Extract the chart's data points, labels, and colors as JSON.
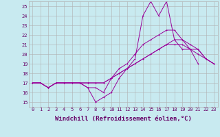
{
  "background_color": "#c8eaf0",
  "line_color": "#990099",
  "grid_color": "#b0b0b0",
  "xlabel": "Windchill (Refroidissement éolien,°C)",
  "ylabel_ticks": [
    15,
    16,
    17,
    18,
    19,
    20,
    21,
    22,
    23,
    24,
    25
  ],
  "xticks": [
    0,
    1,
    2,
    3,
    4,
    5,
    6,
    7,
    8,
    9,
    10,
    11,
    12,
    13,
    14,
    15,
    16,
    17,
    18,
    19,
    20,
    21,
    22,
    23
  ],
  "xlim": [
    -0.5,
    23.5
  ],
  "ylim": [
    14.5,
    25.5
  ],
  "series": [
    [
      17.0,
      17.0,
      16.5,
      17.0,
      17.0,
      17.0,
      17.0,
      16.5,
      15.0,
      15.5,
      16.0,
      17.5,
      18.5,
      19.5,
      24.0,
      25.5,
      24.0,
      25.5,
      21.5,
      20.5,
      20.5,
      19.0,
      null,
      null
    ],
    [
      17.0,
      17.0,
      16.5,
      17.0,
      17.0,
      17.0,
      17.0,
      16.5,
      16.5,
      16.0,
      17.5,
      18.5,
      19.0,
      20.0,
      21.0,
      21.5,
      22.0,
      22.5,
      22.5,
      21.5,
      20.5,
      20.0,
      19.5,
      19.0
    ],
    [
      17.0,
      17.0,
      16.5,
      17.0,
      17.0,
      17.0,
      17.0,
      17.0,
      17.0,
      17.0,
      17.5,
      18.0,
      18.5,
      19.0,
      19.5,
      20.0,
      20.5,
      21.0,
      21.0,
      21.0,
      20.5,
      20.5,
      19.5,
      19.0
    ],
    [
      17.0,
      17.0,
      16.5,
      17.0,
      17.0,
      17.0,
      17.0,
      17.0,
      17.0,
      17.0,
      17.5,
      18.0,
      18.5,
      19.0,
      19.5,
      20.0,
      20.5,
      21.0,
      21.5,
      21.5,
      21.0,
      20.5,
      19.5,
      19.0
    ]
  ],
  "font_color": "#660066",
  "tick_fontsize": 5,
  "label_fontsize": 6.5,
  "linewidth": 0.7,
  "markersize": 1.8
}
